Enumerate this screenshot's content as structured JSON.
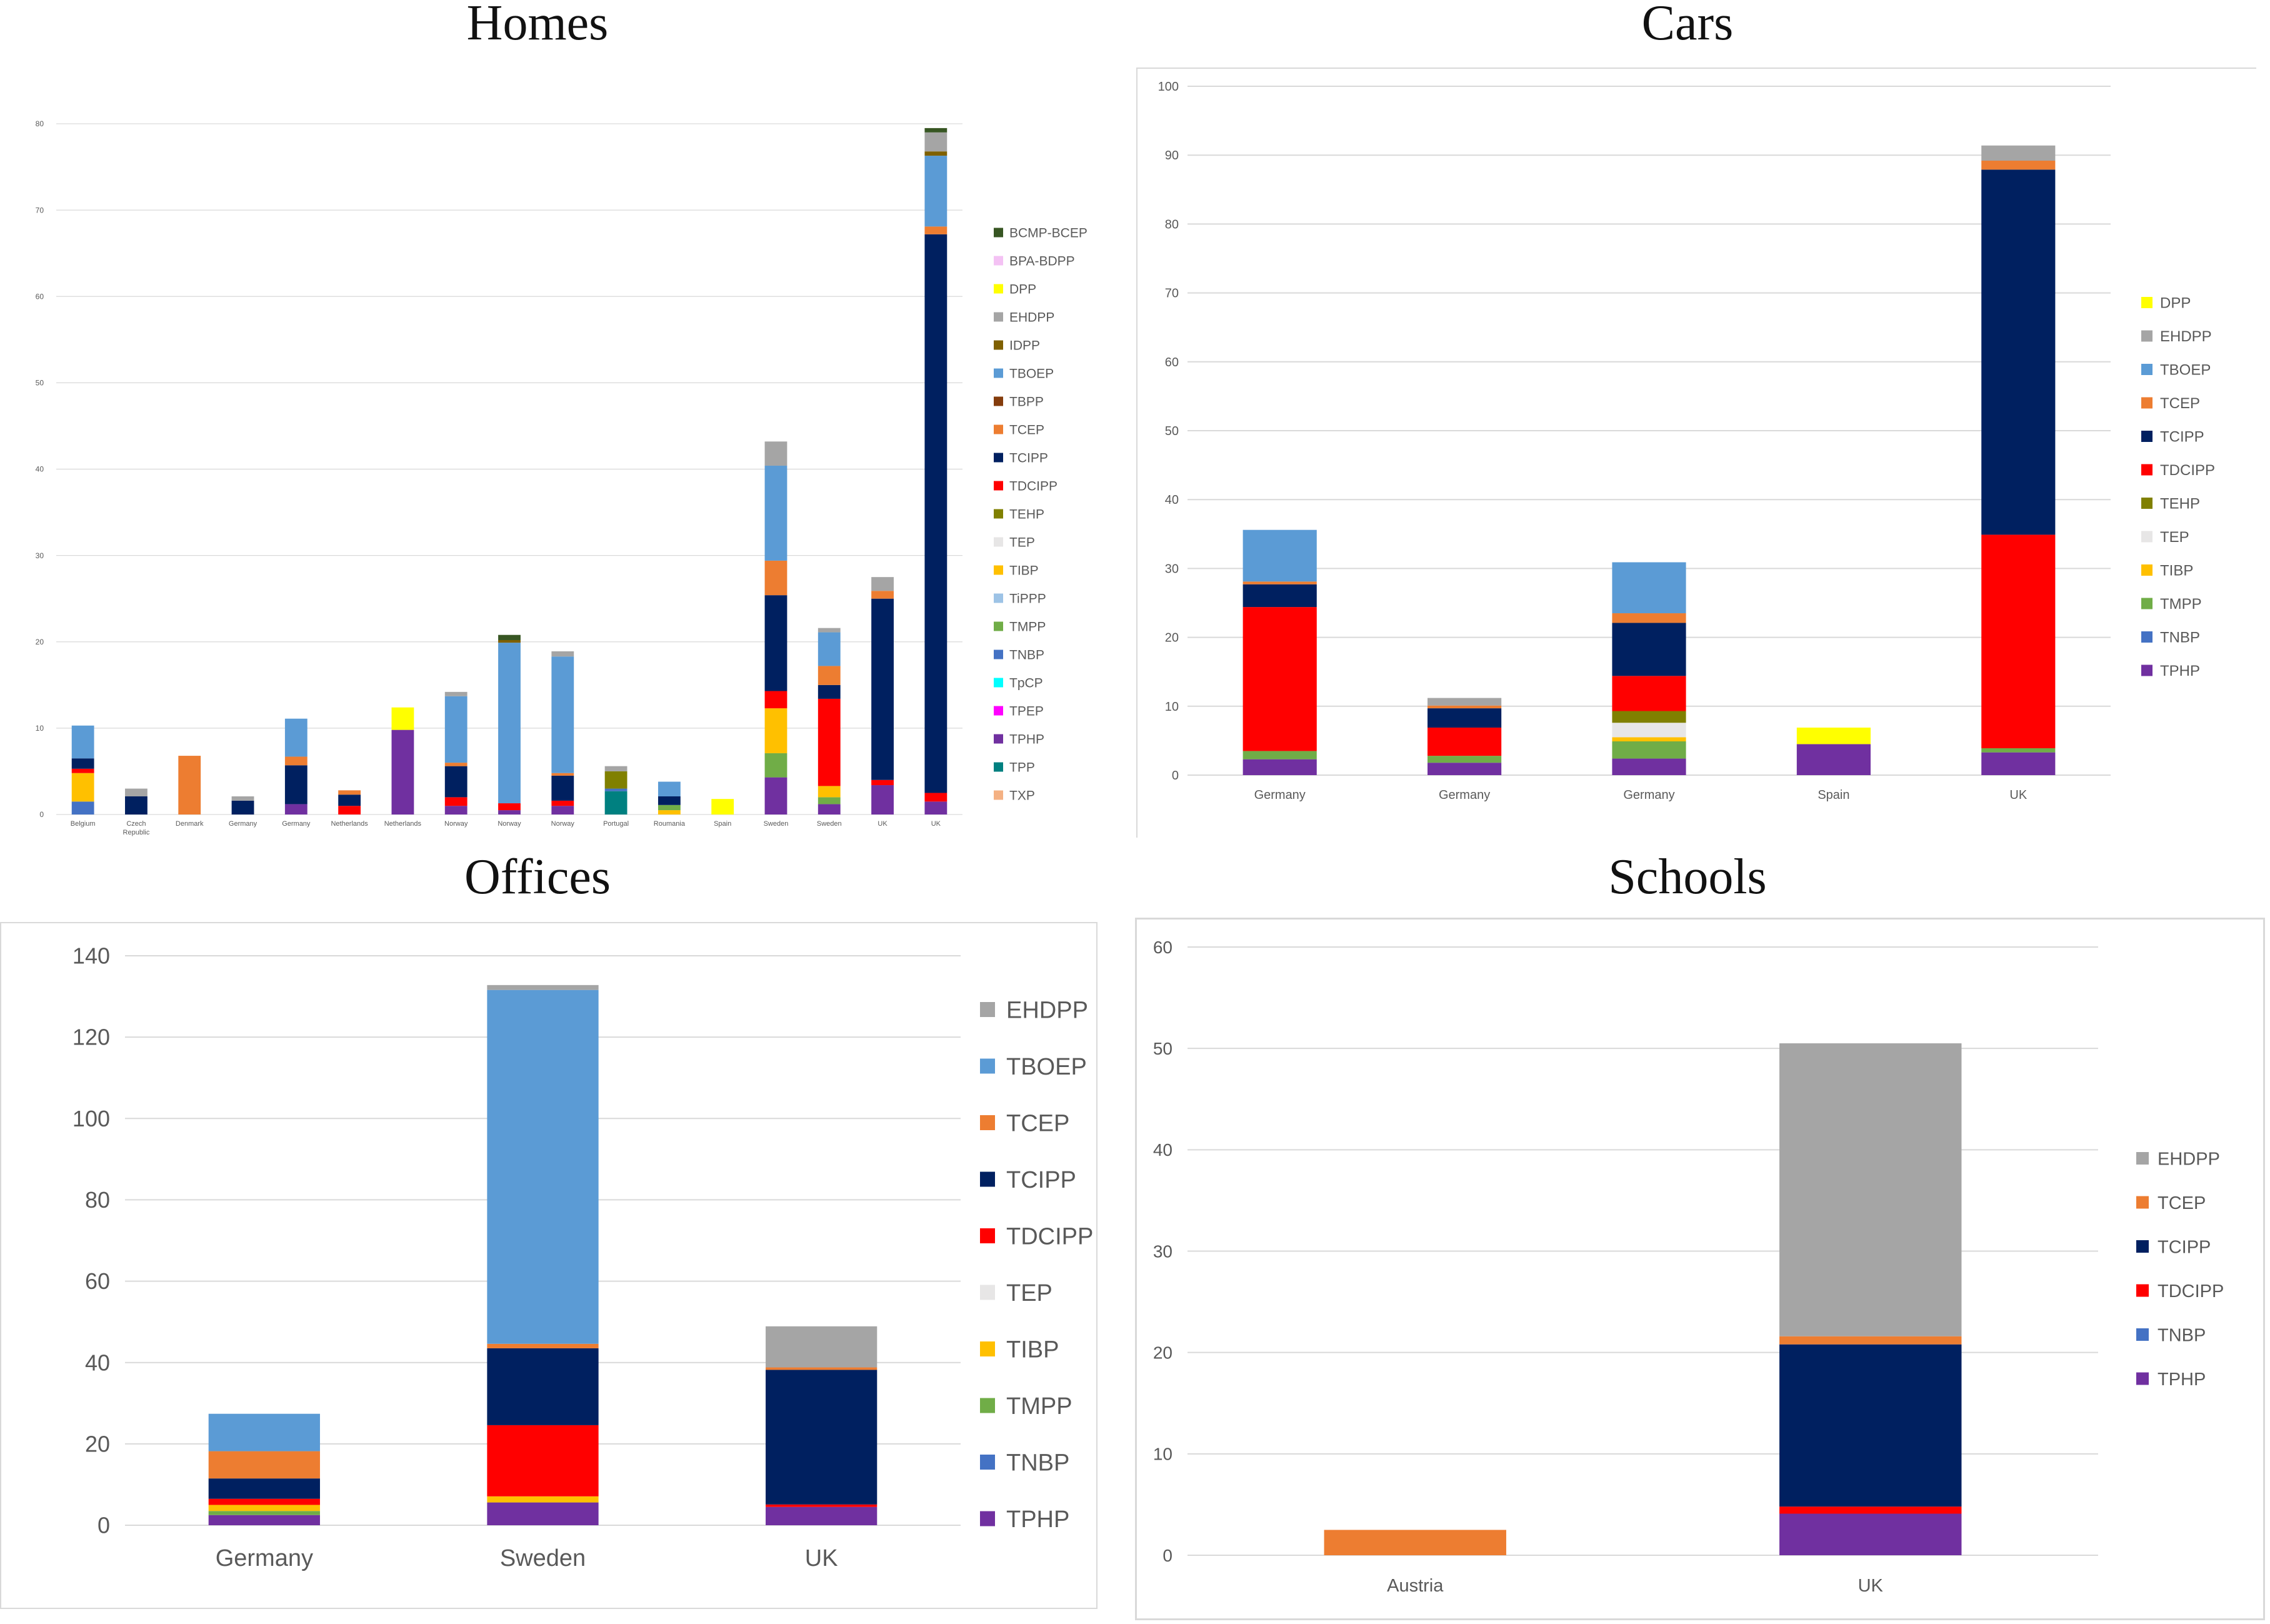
{
  "colors": {
    "BCMP-BCEP": "#375623",
    "BPA-BDPP": "#f4c2f4",
    "DPP": "#ffff00",
    "EHDPP": "#a5a5a5",
    "IDPP": "#7f6000",
    "TBOEP": "#5b9bd5",
    "TBPP": "#843c0c",
    "TCEP": "#ed7d31",
    "TCIPP": "#002060",
    "TDCIPP": "#ff0000",
    "TEHP": "#808000",
    "TEP": "#e7e6e6",
    "TIBP": "#ffc000",
    "TiPPP": "#9dc3e6",
    "TMPP": "#70ad47",
    "TNBP": "#4472c4",
    "TpCP": "#00ffff",
    "TPEP": "#ff00ff",
    "TPHP": "#7030a0",
    "TPP": "#008080",
    "TXP": "#f4b183"
  },
  "chart_data": [
    {
      "title": "Homes",
      "type": "bar",
      "stacked": true,
      "ylim": [
        0,
        80
      ],
      "yticks": [
        0,
        10,
        20,
        30,
        40,
        50,
        60,
        70,
        80
      ],
      "legend": [
        "BCMP-BCEP",
        "BPA-BDPP",
        "DPP",
        "EHDPP",
        "IDPP",
        "TBOEP",
        "TBPP",
        "TCEP",
        "TCIPP",
        "TDCIPP",
        "TEHP",
        "TEP",
        "TIBP",
        "TiPPP",
        "TMPP",
        "TNBP",
        "TpCP",
        "TPEP",
        "TPHP",
        "TPP",
        "TXP"
      ],
      "legend_position": "right",
      "categories": [
        "Belgium",
        "Czech Republic",
        "Denmark",
        "Germany",
        "Germany",
        "Netherlands",
        "Netherlands",
        "Norway",
        "Norway",
        "Norway",
        "Portugal",
        "Roumania",
        "Spain",
        "Sweden",
        "Sweden",
        "UK",
        "UK"
      ],
      "stacks": [
        [
          [
            "TNBP",
            1.5
          ],
          [
            "TIBP",
            3.3
          ],
          [
            "TDCIPP",
            0.5
          ],
          [
            "TCIPP",
            1.2
          ],
          [
            "TBOEP",
            3.8
          ]
        ],
        [
          [
            "TCIPP",
            2.1
          ],
          [
            "EHDPP",
            0.9
          ]
        ],
        [
          [
            "TCEP",
            6.8
          ]
        ],
        [
          [
            "TCIPP",
            1.6
          ],
          [
            "EHDPP",
            0.5
          ]
        ],
        [
          [
            "TPHP",
            1.2
          ],
          [
            "TCIPP",
            4.5
          ],
          [
            "TCEP",
            1.0
          ],
          [
            "TBOEP",
            4.4
          ]
        ],
        [
          [
            "TDCIPP",
            1.0
          ],
          [
            "TCIPP",
            1.3
          ],
          [
            "TCEP",
            0.5
          ]
        ],
        [
          [
            "TPHP",
            9.8
          ],
          [
            "DPP",
            2.6
          ]
        ],
        [
          [
            "TPHP",
            1.0
          ],
          [
            "TDCIPP",
            1.0
          ],
          [
            "TCIPP",
            3.6
          ],
          [
            "TCEP",
            0.4
          ],
          [
            "TBOEP",
            7.7
          ],
          [
            "EHDPP",
            0.5
          ]
        ],
        [
          [
            "TPHP",
            0.5
          ],
          [
            "TDCIPP",
            0.8
          ],
          [
            "TBOEP",
            18.6
          ],
          [
            "IDPP",
            0.3
          ],
          [
            "BCMP-BCEP",
            0.6
          ]
        ],
        [
          [
            "TPHP",
            1.0
          ],
          [
            "TDCIPP",
            0.6
          ],
          [
            "TCIPP",
            2.9
          ],
          [
            "TCEP",
            0.3
          ],
          [
            "TBOEP",
            13.5
          ],
          [
            "EHDPP",
            0.6
          ]
        ],
        [
          [
            "TPP",
            2.7
          ],
          [
            "TNBP",
            0.3
          ],
          [
            "TEHP",
            2.0
          ],
          [
            "EHDPP",
            0.6
          ]
        ],
        [
          [
            "TIBP",
            0.5
          ],
          [
            "TMPP",
            0.6
          ],
          [
            "TCIPP",
            1.0
          ],
          [
            "TBOEP",
            1.7
          ]
        ],
        [
          [
            "DPP",
            1.8
          ]
        ],
        [
          [
            "TPHP",
            4.3
          ],
          [
            "TMPP",
            2.8
          ],
          [
            "TIBP",
            5.2
          ],
          [
            "TDCIPP",
            2.0
          ],
          [
            "TCIPP",
            11.1
          ],
          [
            "TCEP",
            4.0
          ],
          [
            "TBOEP",
            11.0
          ],
          [
            "EHDPP",
            2.8
          ]
        ],
        [
          [
            "TPHP",
            1.2
          ],
          [
            "TMPP",
            0.8
          ],
          [
            "TIBP",
            1.3
          ],
          [
            "TDCIPP",
            10.1
          ],
          [
            "TCIPP",
            1.6
          ],
          [
            "TCEP",
            2.2
          ],
          [
            "TBOEP",
            3.9
          ],
          [
            "EHDPP",
            0.5
          ]
        ],
        [
          [
            "TPHP",
            3.4
          ],
          [
            "TDCIPP",
            0.6
          ],
          [
            "TCIPP",
            21.0
          ],
          [
            "TCEP",
            0.9
          ],
          [
            "EHDPP",
            1.6
          ]
        ],
        [
          [
            "TPHP",
            1.5
          ],
          [
            "TDCIPP",
            1.0
          ],
          [
            "TCIPP",
            64.7
          ],
          [
            "TCEP",
            0.9
          ],
          [
            "TBOEP",
            8.2
          ],
          [
            "IDPP",
            0.5
          ],
          [
            "EHDPP",
            2.2
          ],
          [
            "BCMP-BCEP",
            0.5
          ]
        ]
      ]
    },
    {
      "title": "Cars",
      "type": "bar",
      "stacked": true,
      "ylim": [
        0,
        100
      ],
      "yticks": [
        0,
        10,
        20,
        30,
        40,
        50,
        60,
        70,
        80,
        90,
        100
      ],
      "legend": [
        "DPP",
        "EHDPP",
        "TBOEP",
        "TCEP",
        "TCIPP",
        "TDCIPP",
        "TEHP",
        "TEP",
        "TIBP",
        "TMPP",
        "TNBP",
        "TPHP"
      ],
      "legend_position": "right",
      "categories": [
        "Germany",
        "Germany",
        "Germany",
        "Spain",
        "UK"
      ],
      "stacks": [
        [
          [
            "TPHP",
            2.3
          ],
          [
            "TMPP",
            1.2
          ],
          [
            "TDCIPP",
            20.9
          ],
          [
            "TCIPP",
            3.3
          ],
          [
            "TCEP",
            0.4
          ],
          [
            "TBOEP",
            7.5
          ]
        ],
        [
          [
            "TPHP",
            1.8
          ],
          [
            "TMPP",
            1.0
          ],
          [
            "TDCIPP",
            4.1
          ],
          [
            "TCIPP",
            2.8
          ],
          [
            "TCEP",
            0.4
          ],
          [
            "EHDPP",
            1.1
          ]
        ],
        [
          [
            "TPHP",
            2.4
          ],
          [
            "TMPP",
            2.5
          ],
          [
            "TIBP",
            0.6
          ],
          [
            "TEP",
            2.1
          ],
          [
            "TEHP",
            1.7
          ],
          [
            "TDCIPP",
            5.1
          ],
          [
            "TCIPP",
            7.7
          ],
          [
            "TCEP",
            1.4
          ],
          [
            "TBOEP",
            7.4
          ]
        ],
        [
          [
            "TPHP",
            4.5
          ],
          [
            "DPP",
            2.4
          ]
        ],
        [
          [
            "TPHP",
            3.3
          ],
          [
            "TMPP",
            0.6
          ],
          [
            "TDCIPP",
            31.0
          ],
          [
            "TCIPP",
            53.0
          ],
          [
            "TCEP",
            1.3
          ],
          [
            "EHDPP",
            2.2
          ]
        ]
      ]
    },
    {
      "title": "Offices",
      "type": "bar",
      "stacked": true,
      "ylim": [
        0,
        140
      ],
      "yticks": [
        0,
        20,
        40,
        60,
        80,
        100,
        120,
        140
      ],
      "legend": [
        "EHDPP",
        "TBOEP",
        "TCEP",
        "TCIPP",
        "TDCIPP",
        "TEP",
        "TIBP",
        "TMPP",
        "TNBP",
        "TPHP"
      ],
      "legend_position": "right",
      "categories": [
        "Germany",
        "Sweden",
        "UK"
      ],
      "stacks": [
        [
          [
            "TPHP",
            2.5
          ],
          [
            "TMPP",
            1.0
          ],
          [
            "TIBP",
            1.5
          ],
          [
            "TDCIPP",
            1.5
          ],
          [
            "TCIPP",
            5.0
          ],
          [
            "TCEP",
            6.7
          ],
          [
            "TBOEP",
            9.2
          ]
        ],
        [
          [
            "TPHP",
            5.6
          ],
          [
            "TIBP",
            1.5
          ],
          [
            "TDCIPP",
            17.5
          ],
          [
            "TCIPP",
            18.9
          ],
          [
            "TCEP",
            1.1
          ],
          [
            "TBOEP",
            87.0
          ],
          [
            "EHDPP",
            1.2
          ]
        ],
        [
          [
            "TPHP",
            4.5
          ],
          [
            "TDCIPP",
            0.6
          ],
          [
            "TCIPP",
            33.1
          ],
          [
            "TCEP",
            0.6
          ],
          [
            "EHDPP",
            10.1
          ]
        ]
      ]
    },
    {
      "title": "Schools",
      "type": "bar",
      "stacked": true,
      "ylim": [
        0,
        60
      ],
      "yticks": [
        0,
        10,
        20,
        30,
        40,
        50,
        60
      ],
      "legend": [
        "EHDPP",
        "TCEP",
        "TCIPP",
        "TDCIPP",
        "TNBP",
        "TPHP"
      ],
      "legend_position": "right",
      "categories": [
        "Austria",
        "UK"
      ],
      "stacks": [
        [
          [
            "TCEP",
            2.5
          ]
        ],
        [
          [
            "TPHP",
            4.1
          ],
          [
            "TDCIPP",
            0.7
          ],
          [
            "TCIPP",
            16.0
          ],
          [
            "TCEP",
            0.8
          ],
          [
            "EHDPP",
            28.9
          ]
        ]
      ]
    }
  ]
}
